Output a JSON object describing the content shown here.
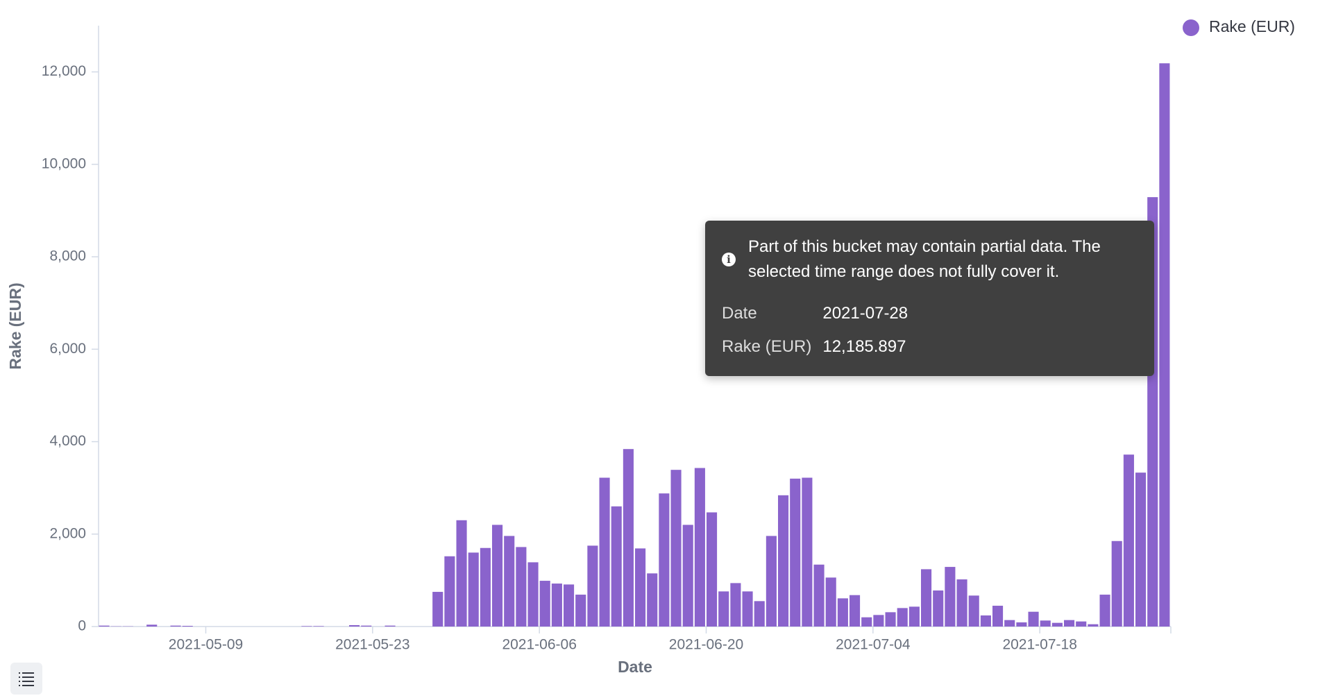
{
  "chart_data": {
    "type": "bar",
    "x_label": "Date",
    "y_label": "Rake (EUR)",
    "x": [
      "2021-04-30",
      "2021-05-01",
      "2021-05-02",
      "2021-05-03",
      "2021-05-04",
      "2021-05-05",
      "2021-05-06",
      "2021-05-07",
      "2021-05-08",
      "2021-05-09",
      "2021-05-10",
      "2021-05-11",
      "2021-05-12",
      "2021-05-13",
      "2021-05-14",
      "2021-05-15",
      "2021-05-16",
      "2021-05-17",
      "2021-05-18",
      "2021-05-19",
      "2021-05-20",
      "2021-05-21",
      "2021-05-22",
      "2021-05-23",
      "2021-05-24",
      "2021-05-25",
      "2021-05-26",
      "2021-05-27",
      "2021-05-28",
      "2021-05-29",
      "2021-05-30",
      "2021-05-31",
      "2021-06-01",
      "2021-06-02",
      "2021-06-03",
      "2021-06-04",
      "2021-06-05",
      "2021-06-06",
      "2021-06-07",
      "2021-06-08",
      "2021-06-09",
      "2021-06-10",
      "2021-06-11",
      "2021-06-12",
      "2021-06-13",
      "2021-06-14",
      "2021-06-15",
      "2021-06-16",
      "2021-06-17",
      "2021-06-18",
      "2021-06-19",
      "2021-06-20",
      "2021-06-21",
      "2021-06-22",
      "2021-06-23",
      "2021-06-24",
      "2021-06-25",
      "2021-06-26",
      "2021-06-27",
      "2021-06-28",
      "2021-06-29",
      "2021-06-30",
      "2021-07-01",
      "2021-07-02",
      "2021-07-03",
      "2021-07-04",
      "2021-07-05",
      "2021-07-06",
      "2021-07-07",
      "2021-07-08",
      "2021-07-09",
      "2021-07-10",
      "2021-07-11",
      "2021-07-12",
      "2021-07-13",
      "2021-07-14",
      "2021-07-15",
      "2021-07-16",
      "2021-07-17",
      "2021-07-18",
      "2021-07-19",
      "2021-07-20",
      "2021-07-21",
      "2021-07-22",
      "2021-07-23",
      "2021-07-24",
      "2021-07-25",
      "2021-07-26",
      "2021-07-27",
      "2021-07-28"
    ],
    "series": [
      {
        "name": "Rake (EUR)",
        "color": "#8a63cc",
        "values": [
          20,
          5,
          5,
          0,
          40,
          0,
          20,
          15,
          0,
          0,
          0,
          0,
          0,
          0,
          0,
          0,
          0,
          10,
          10,
          0,
          0,
          30,
          20,
          0,
          20,
          0,
          0,
          0,
          750,
          1520,
          2300,
          1600,
          1700,
          2200,
          1960,
          1720,
          1390,
          990,
          930,
          910,
          690,
          1750,
          3220,
          2600,
          3840,
          1690,
          1150,
          2880,
          3390,
          2200,
          3430,
          2470,
          760,
          940,
          760,
          550,
          1960,
          2840,
          3200,
          3220,
          1340,
          1060,
          610,
          680,
          200,
          250,
          310,
          400,
          430,
          1240,
          780,
          1290,
          1020,
          670,
          240,
          450,
          140,
          90,
          320,
          130,
          80,
          140,
          110,
          50,
          690,
          1850,
          3720,
          3330,
          9290,
          12185.897
        ]
      }
    ],
    "xlim": [
      "2021-04-30",
      "2021-07-29"
    ],
    "xticks": [
      "2021-05-09",
      "2021-05-23",
      "2021-06-06",
      "2021-06-20",
      "2021-07-04",
      "2021-07-18"
    ],
    "ylim": [
      0,
      13000
    ],
    "yticks": [
      0,
      {
        "value": 2000,
        "label": "2,000"
      },
      {
        "value": 4000,
        "label": "4,000"
      },
      {
        "value": 6000,
        "label": "6,000"
      },
      {
        "value": 8000,
        "label": "8,000"
      },
      {
        "value": 10000,
        "label": "10,000"
      },
      {
        "value": 12000,
        "label": "12,000"
      }
    ],
    "legend": "top-right"
  },
  "tooltip": {
    "message": "Part of this bucket may contain partial data. The selected time range does not fully cover it.",
    "rows": [
      [
        "Date",
        "2021-07-28"
      ],
      [
        "Rake (EUR)",
        "12,185.897"
      ]
    ]
  }
}
